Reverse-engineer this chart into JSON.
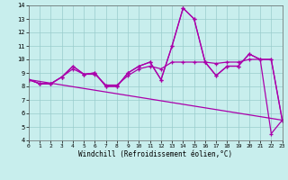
{
  "xlabel": "Windchill (Refroidissement éolien,°C)",
  "background_color": "#c8eeed",
  "grid_color": "#99cccc",
  "line_color": "#aa00aa",
  "xlim": [
    0,
    23
  ],
  "ylim": [
    4,
    14
  ],
  "x_ticks": [
    0,
    1,
    2,
    3,
    4,
    5,
    6,
    7,
    8,
    9,
    10,
    11,
    12,
    13,
    14,
    15,
    16,
    17,
    18,
    19,
    20,
    21,
    22,
    23
  ],
  "y_ticks": [
    4,
    5,
    6,
    7,
    8,
    9,
    10,
    11,
    12,
    13,
    14
  ],
  "series1": [
    8.5,
    8.2,
    8.2,
    8.7,
    9.5,
    8.9,
    9.0,
    8.0,
    8.0,
    9.0,
    9.5,
    9.8,
    8.5,
    11.0,
    13.8,
    13.0,
    9.8,
    8.8,
    9.5,
    9.5,
    10.4,
    10.0,
    4.5,
    5.5
  ],
  "series2": [
    8.5,
    8.2,
    8.2,
    8.7,
    9.5,
    8.9,
    9.0,
    8.0,
    8.0,
    9.0,
    9.5,
    9.8,
    8.5,
    11.0,
    13.8,
    13.0,
    9.8,
    8.8,
    9.5,
    9.5,
    10.4,
    10.0,
    10.0,
    5.5
  ],
  "series3": [
    8.5,
    8.2,
    8.2,
    8.7,
    9.3,
    8.9,
    8.9,
    8.1,
    8.1,
    8.8,
    9.3,
    9.5,
    9.3,
    9.8,
    9.8,
    9.8,
    9.8,
    9.7,
    9.8,
    9.8,
    10.0,
    10.0,
    10.0,
    5.5
  ],
  "series4_x": [
    0,
    23
  ],
  "series4_y": [
    8.5,
    5.5
  ]
}
